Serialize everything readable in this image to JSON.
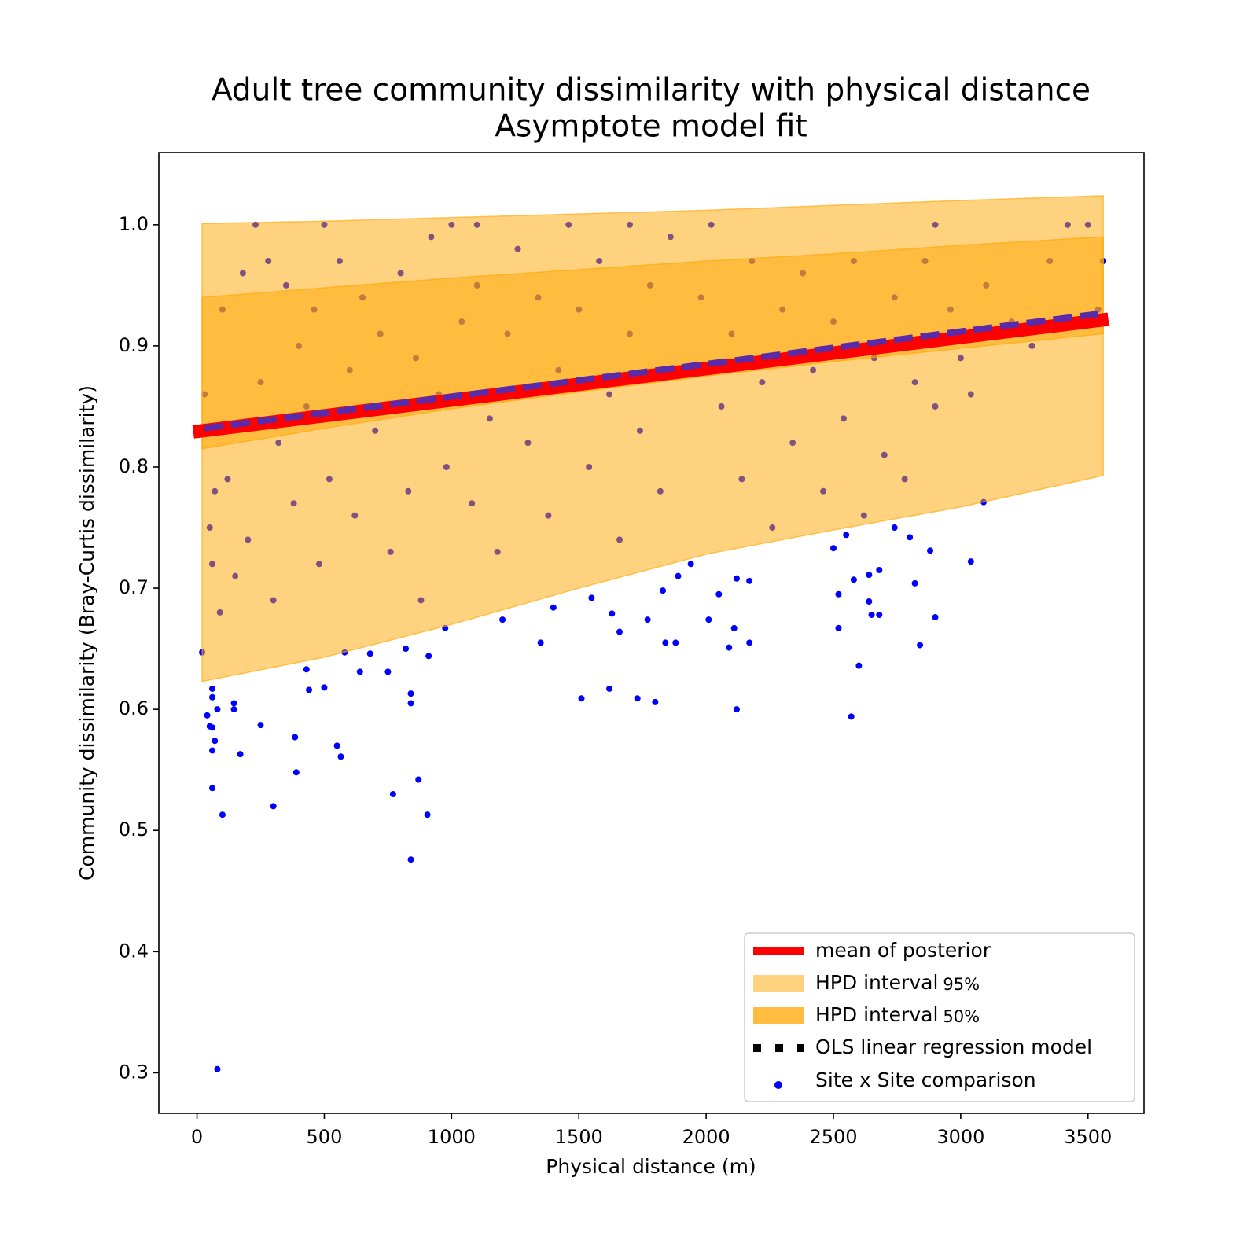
{
  "chart_data": {
    "type": "scatter",
    "title": "Adult tree community dissimilarity with physical distance",
    "subtitle": "Asymptote model fit",
    "x_label": "Physical distance (m)",
    "y_label": "Community dissimilarity (Bray-Curtis dissimilarity)",
    "xlim": [
      -150,
      3720
    ],
    "ylim": [
      0.2665,
      1.0596
    ],
    "xticks": [
      0,
      500,
      1000,
      1500,
      2000,
      2500,
      3000,
      3500
    ],
    "yticks": [
      0.3,
      0.4,
      0.5,
      0.6,
      0.7,
      0.8,
      0.9,
      {
        "value": 1,
        "label": "1.0"
      }
    ],
    "legend_position": "lower right",
    "bands": [
      {
        "name": "HPD interval",
        "level": "95%",
        "color": "#ffa500",
        "opacity": 0.5,
        "x": [
          20,
          500,
          1000,
          1500,
          2000,
          2500,
          3000,
          3560
        ],
        "upper": [
          1.001,
          1.003,
          1.006,
          1.009,
          1.012,
          1.016,
          1.02,
          1.024
        ],
        "lower": [
          0.623,
          0.643,
          0.67,
          0.7,
          0.728,
          0.748,
          0.767,
          0.793
        ]
      },
      {
        "name": "HPD interval",
        "level": "50%",
        "color": "#ffa500",
        "opacity": 0.5,
        "x": [
          20,
          500,
          1000,
          1500,
          2000,
          2500,
          3000,
          3560
        ],
        "upper": [
          0.94,
          0.948,
          0.956,
          0.963,
          0.97,
          0.976,
          0.983,
          0.99
        ],
        "lower": [
          0.815,
          0.832,
          0.848,
          0.862,
          0.875,
          0.887,
          0.898,
          0.91
        ]
      }
    ],
    "lines": [
      {
        "name": "mean of posterior",
        "color": "#ff0000",
        "width": 17,
        "dashed": false,
        "x": [
          -15,
          3580
        ],
        "values": [
          0.829,
          0.922
        ]
      },
      {
        "name": "OLS linear regression model",
        "color": "#5a2aa8",
        "width": 8,
        "dashed": true,
        "x": [
          30,
          3560
        ],
        "values": [
          0.832,
          0.927
        ]
      }
    ],
    "series": [
      {
        "name": "Site x Site comparison",
        "color": "#0000ff",
        "x": [
          80,
          840,
          300,
          100,
          905,
          870,
          770,
          390,
          60,
          170,
          565,
          550,
          385,
          60,
          70,
          250,
          40,
          50,
          60,
          145,
          145,
          60,
          60,
          80,
          500,
          440,
          430,
          640,
          750,
          680,
          580,
          840,
          840,
          820,
          910,
          975,
          1200,
          1350,
          1400,
          1510,
          1550,
          1620,
          1630,
          1660,
          1730,
          1770,
          1800,
          1830,
          1840,
          1880,
          1890,
          2010,
          2050,
          2090,
          2110,
          2120,
          2170,
          2170,
          2120,
          2520,
          2520,
          2570,
          2600,
          2640,
          2650,
          2680,
          2580,
          2680,
          2740,
          2800,
          2820,
          2840,
          2880,
          2900,
          3040,
          3090,
          2500,
          2550,
          2640,
          20,
          30,
          50,
          60,
          70,
          90,
          100,
          120,
          150,
          180,
          200,
          230,
          250,
          280,
          300,
          320,
          350,
          380,
          400,
          430,
          460,
          480,
          500,
          520,
          560,
          600,
          620,
          650,
          700,
          720,
          760,
          800,
          830,
          860,
          880,
          920,
          950,
          980,
          1000,
          1040,
          1080,
          1100,
          1150,
          1180,
          1220,
          1260,
          1300,
          1340,
          1380,
          1420,
          1460,
          1500,
          1540,
          1580,
          1620,
          1660,
          1700,
          1740,
          1780,
          1820,
          1860,
          1900,
          1940,
          1980,
          2020,
          2060,
          2100,
          2140,
          2180,
          2220,
          2260,
          2300,
          2340,
          2380,
          2420,
          2460,
          2500,
          2540,
          2580,
          2620,
          2660,
          2700,
          2740,
          2780,
          2820,
          2860,
          2900,
          2960,
          3000,
          3040,
          3100,
          3200,
          3280,
          3350,
          3420,
          3500,
          3560,
          3540,
          1100,
          1700,
          2900
        ],
        "values": [
          0.303,
          0.476,
          0.52,
          0.513,
          0.513,
          0.542,
          0.53,
          0.548,
          0.535,
          0.563,
          0.561,
          0.57,
          0.577,
          0.566,
          0.574,
          0.587,
          0.595,
          0.586,
          0.585,
          0.6,
          0.605,
          0.61,
          0.617,
          0.6,
          0.618,
          0.616,
          0.633,
          0.631,
          0.631,
          0.646,
          0.647,
          0.613,
          0.605,
          0.65,
          0.644,
          0.667,
          0.674,
          0.655,
          0.684,
          0.609,
          0.692,
          0.617,
          0.679,
          0.664,
          0.609,
          0.674,
          0.606,
          0.698,
          0.655,
          0.655,
          0.71,
          0.674,
          0.695,
          0.651,
          0.667,
          0.6,
          0.655,
          0.706,
          0.708,
          0.667,
          0.695,
          0.594,
          0.636,
          0.689,
          0.678,
          0.678,
          0.707,
          0.715,
          0.75,
          0.742,
          0.704,
          0.653,
          0.731,
          0.676,
          0.722,
          0.771,
          0.733,
          0.744,
          0.711,
          0.647,
          0.86,
          0.75,
          0.72,
          0.78,
          0.68,
          0.93,
          0.79,
          0.71,
          0.96,
          0.74,
          1.0,
          0.87,
          0.97,
          0.69,
          0.82,
          0.95,
          0.77,
          0.9,
          0.85,
          0.93,
          0.72,
          1.0,
          0.79,
          0.97,
          0.88,
          0.76,
          0.94,
          0.83,
          0.91,
          0.73,
          0.96,
          0.78,
          0.89,
          0.69,
          0.99,
          0.86,
          0.8,
          1.0,
          0.92,
          0.77,
          0.95,
          0.84,
          0.73,
          0.91,
          0.98,
          0.82,
          0.94,
          0.76,
          0.88,
          1.0,
          0.93,
          0.8,
          0.97,
          0.86,
          0.74,
          0.91,
          0.83,
          0.95,
          0.78,
          0.99,
          0.88,
          0.72,
          0.94,
          1.0,
          0.85,
          0.91,
          0.79,
          0.97,
          0.87,
          0.75,
          0.93,
          0.82,
          0.96,
          0.88,
          0.78,
          0.92,
          0.84,
          0.97,
          0.76,
          0.89,
          0.81,
          0.94,
          0.79,
          0.87,
          0.97,
          0.85,
          0.93,
          0.89,
          0.86,
          0.95,
          0.92,
          0.9,
          0.97,
          1.0,
          1.0,
          0.97,
          0.93,
          1.0,
          1.0,
          1.0
        ]
      }
    ]
  }
}
